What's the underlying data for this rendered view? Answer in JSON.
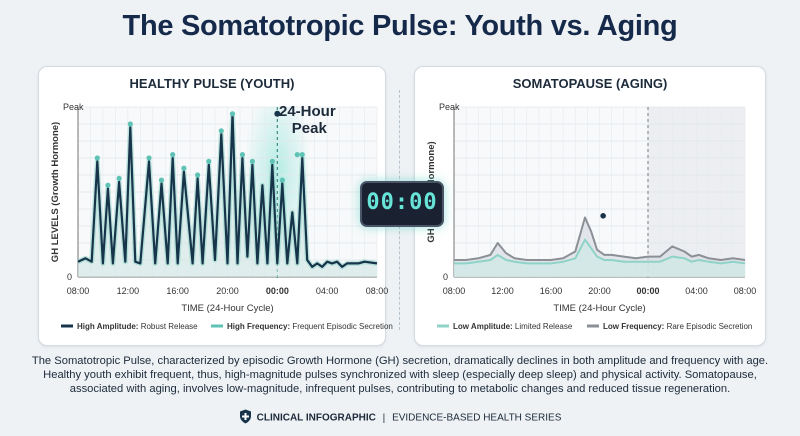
{
  "title": "The Somatotropic Pulse: Youth vs. Aging",
  "clock": "00:00",
  "description": "The Somatotropic Pulse, characterized by episodic Growth Hormone (GH) secretion, dramatically declines in both amplitude and frequency with age. Healthy youth exhibit frequent, thus, high-magnitude pulses synchronized with sleep (especially deep sleep) and physical activity. Somatopause, associated with aging, involves low-magnitude, infrequent pulses, contributing to metabolic changes and reduced tissue regeneration.",
  "footer": {
    "left": "CLINICAL INFOGRAPHIC",
    "separator": "|",
    "right": "EVIDENCE-BASED HEALTH SERIES"
  },
  "colors": {
    "dark_line": "#17344a",
    "teal": "#5ec3b4",
    "gray_line": "#8b8f96",
    "teal_light": "#8fd3c8"
  },
  "chart_data": [
    {
      "type": "line",
      "title": "HEALTHY PULSE (YOUTH)",
      "xlabel": "TIME (24-Hour Cycle)",
      "ylabel": "GH LEVELS (Growth Hormone)",
      "y_top_label": "Peak",
      "y_bottom_label": "0",
      "x_ticks": [
        "08:00",
        "12:00",
        "16:00",
        "20:00",
        "00:00",
        "04:00",
        "08:00"
      ],
      "x_tick_bold_index": 4,
      "ylim": [
        0,
        100
      ],
      "xlim": [
        0,
        24
      ],
      "peak_annotation": "24-Hour Peak",
      "peak_annotation_lines": [
        "24-Hour",
        "Peak"
      ],
      "series": [
        {
          "name": "High Amplitude",
          "x": [
            0,
            0.6,
            1.1,
            1.55,
            2.0,
            2.4,
            2.8,
            3.3,
            3.8,
            4.2,
            4.6,
            5.0,
            5.7,
            6.2,
            6.7,
            7.2,
            7.6,
            8.0,
            8.5,
            9.2,
            9.6,
            10.0,
            10.5,
            11.0,
            11.5,
            12.0,
            12.4,
            12.8,
            13.2,
            13.6,
            14.0,
            14.4,
            14.8,
            15.2,
            15.6,
            16.0,
            16.4,
            16.8,
            17.2,
            17.6,
            18.0,
            18.4,
            18.8,
            19.2,
            19.6,
            20.0,
            20.4,
            20.8,
            21.2,
            21.6,
            22.0,
            22.5,
            23.0,
            24.0
          ],
          "y": [
            9,
            11,
            9,
            68,
            8,
            52,
            8,
            56,
            9,
            88,
            9,
            8,
            68,
            8,
            55,
            8,
            70,
            8,
            62,
            8,
            58,
            8,
            66,
            10,
            84,
            8,
            96,
            8,
            70,
            12,
            66,
            8,
            54,
            8,
            66,
            8,
            55,
            8,
            38,
            8,
            70,
            10,
            6,
            8,
            6,
            9,
            8,
            9,
            6,
            8,
            8,
            8,
            9,
            8
          ]
        },
        {
          "name": "High Frequency",
          "x": [
            1.55,
            2.4,
            3.3,
            4.2,
            5.7,
            6.7,
            7.6,
            8.5,
            9.6,
            10.5,
            11.5,
            12.4,
            13.2,
            14.0,
            15.6,
            16.4,
            17.6,
            18.0
          ],
          "y": [
            70,
            54,
            58,
            90,
            70,
            57,
            72,
            64,
            60,
            68,
            86,
            96,
            72,
            68,
            68,
            57,
            72,
            72
          ]
        }
      ],
      "legend": [
        {
          "bold": "High Amplitude:",
          "text": "Robust Release"
        },
        {
          "bold": "High Frequency:",
          "text": "Frequent Episodic Secretion"
        }
      ]
    },
    {
      "type": "line",
      "title": "SOMATOPAUSE (AGING)",
      "xlabel": "TIME (24-Hour Cycle)",
      "ylabel": "GH LEVELS Hormone)",
      "y_top_label": "Peak",
      "y_bottom_label": "0",
      "x_ticks": [
        "08:00",
        "12:00",
        "16:00",
        "20:00",
        "00:00",
        "04:00",
        "08:00"
      ],
      "x_tick_bold_index": 4,
      "ylim": [
        0,
        100
      ],
      "xlim": [
        0,
        24
      ],
      "series": [
        {
          "name": "Low Frequency",
          "x": [
            0,
            1,
            2,
            3,
            3.6,
            4.3,
            5,
            6,
            7,
            8,
            9,
            10,
            10.8,
            11.3,
            11.8,
            12.4,
            13,
            14,
            15,
            16,
            17,
            18,
            19,
            19.6,
            20.2,
            21,
            22,
            23,
            24
          ],
          "y": [
            10,
            10,
            11,
            13,
            20,
            14,
            11,
            10,
            10,
            10,
            11,
            15,
            35,
            27,
            16,
            13,
            13,
            12,
            11,
            12,
            12,
            18,
            15,
            12,
            13,
            11,
            10,
            11,
            10
          ]
        },
        {
          "name": "Low Amplitude",
          "x": [
            0,
            1,
            2,
            3,
            3.6,
            4.3,
            5,
            6,
            7,
            8,
            9,
            10,
            10.8,
            11.3,
            11.8,
            12.4,
            13,
            14,
            15,
            16,
            17,
            18,
            19,
            19.6,
            20.2,
            21,
            22,
            23,
            24
          ],
          "y": [
            8,
            8,
            9,
            10,
            13,
            10,
            9,
            8,
            8,
            8,
            9,
            11,
            22,
            17,
            12,
            10,
            10,
            9,
            9,
            9,
            9,
            12,
            11,
            9,
            10,
            9,
            8,
            9,
            8
          ]
        }
      ],
      "legend": [
        {
          "bold": "Low Amplitude:",
          "text": "Limited Release"
        },
        {
          "bold": "Low Frequency:",
          "text": "Rare Episodic Secretion"
        }
      ]
    }
  ]
}
